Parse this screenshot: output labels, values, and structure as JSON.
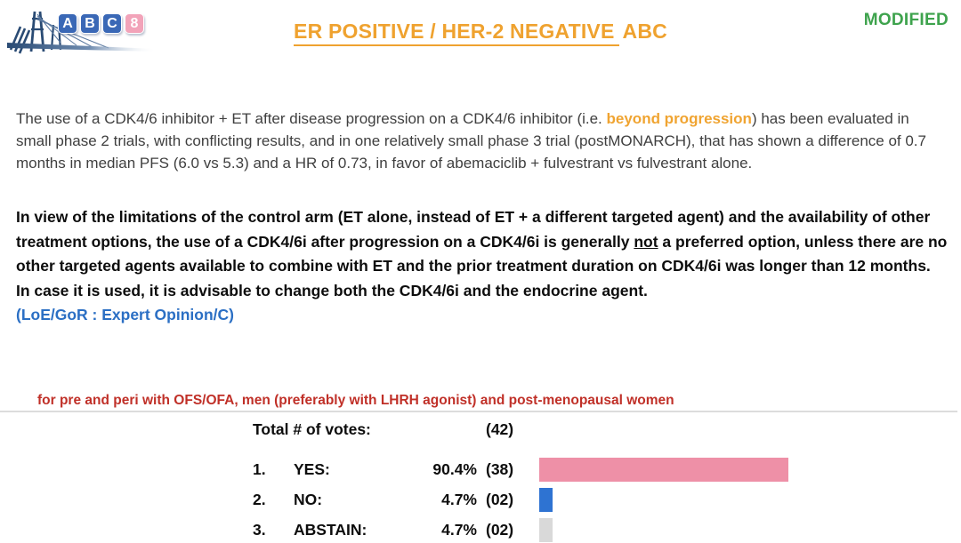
{
  "slide": {
    "logo": {
      "letters": [
        "A",
        "B",
        "C",
        "8"
      ],
      "letter_colors": [
        "#3a68b6",
        "#3a68b6",
        "#3a68b6",
        "#f2a3b9"
      ],
      "bridge_color": "#2a4b74"
    },
    "title": {
      "underlined_part": "ER POSITIVE / HER-2 NEGATIVE",
      "plain_part": "ABC",
      "color": "#efa22f"
    },
    "modified_label": "MODIFIED",
    "modified_color": "#3ea34d"
  },
  "paragraph_intro": {
    "text_before_highlight": "The use of a CDK4/6 inhibitor + ET after disease progression on a CDK4/6 inhibitor (i.e. ",
    "highlight": "beyond progression",
    "highlight_color": "#f0a431",
    "text_after_highlight": ") has been evaluated in small phase 2 trials, with conflicting results, and in one relatively small phase 3 trial (postMONARCH), that has shown a difference of 0.7 months in median PFS (6.0 vs 5.3) and a HR of 0.73, in favor of abemaciclib + fulvestrant vs fulvestrant alone."
  },
  "recommendation": {
    "text_before_not": "In view of the limitations of the control arm (ET alone, instead of ET + a different targeted agent) and the availability of other treatment options, the use of a CDK4/6i after progression on a CDK4/6i is generally ",
    "underlined_word": "not",
    "text_after_not": " a preferred option, unless there are no other targeted agents available to combine with ET and the prior treatment duration on CDK4/6i was longer than 12 months.",
    "second_sentence": "In case it is used, it is advisable to change both the CDK4/6i and the endocrine agent.",
    "loe_gor": "(LoE/GoR : Expert Opinion/C)",
    "loe_color": "#2b6fc4"
  },
  "population_note": {
    "text": "for pre and peri with OFS/OFA, men (preferably with LHRH agonist) and post-menopausal women",
    "color": "#c03028"
  },
  "chart_data": {
    "type": "bar",
    "orientation": "horizontal",
    "total_label": "Total # of votes:",
    "total_count": "(42)",
    "categories": [
      "YES",
      "NO",
      "ABSTAIN"
    ],
    "values": [
      90.4,
      4.7,
      4.7
    ],
    "counts": [
      38,
      2,
      2
    ],
    "xlim": [
      0,
      100
    ],
    "rows": [
      {
        "index": "1.",
        "label": "YES:",
        "percent": "90.4%",
        "count": "(38)",
        "value": 90.4,
        "bar_color": "#ee90a7"
      },
      {
        "index": "2.",
        "label": "NO:",
        "percent": "4.7%",
        "count": "(02)",
        "value": 4.7,
        "bar_color": "#2e73d2"
      },
      {
        "index": "3.",
        "label": "ABSTAIN:",
        "percent": "4.7%",
        "count": "(02)",
        "value": 4.7,
        "bar_color": "#d9d9d9"
      }
    ]
  }
}
